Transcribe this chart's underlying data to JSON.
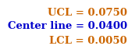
{
  "lines": [
    {
      "label": "UCL = 0.0750",
      "color": "#CC6600"
    },
    {
      "label": "Center line = 0.0400",
      "color": "#0000CC"
    },
    {
      "label": "LCL = 0.0050",
      "color": "#CC6600"
    }
  ],
  "background_color": "#ffffff",
  "font_size": 9.5
}
